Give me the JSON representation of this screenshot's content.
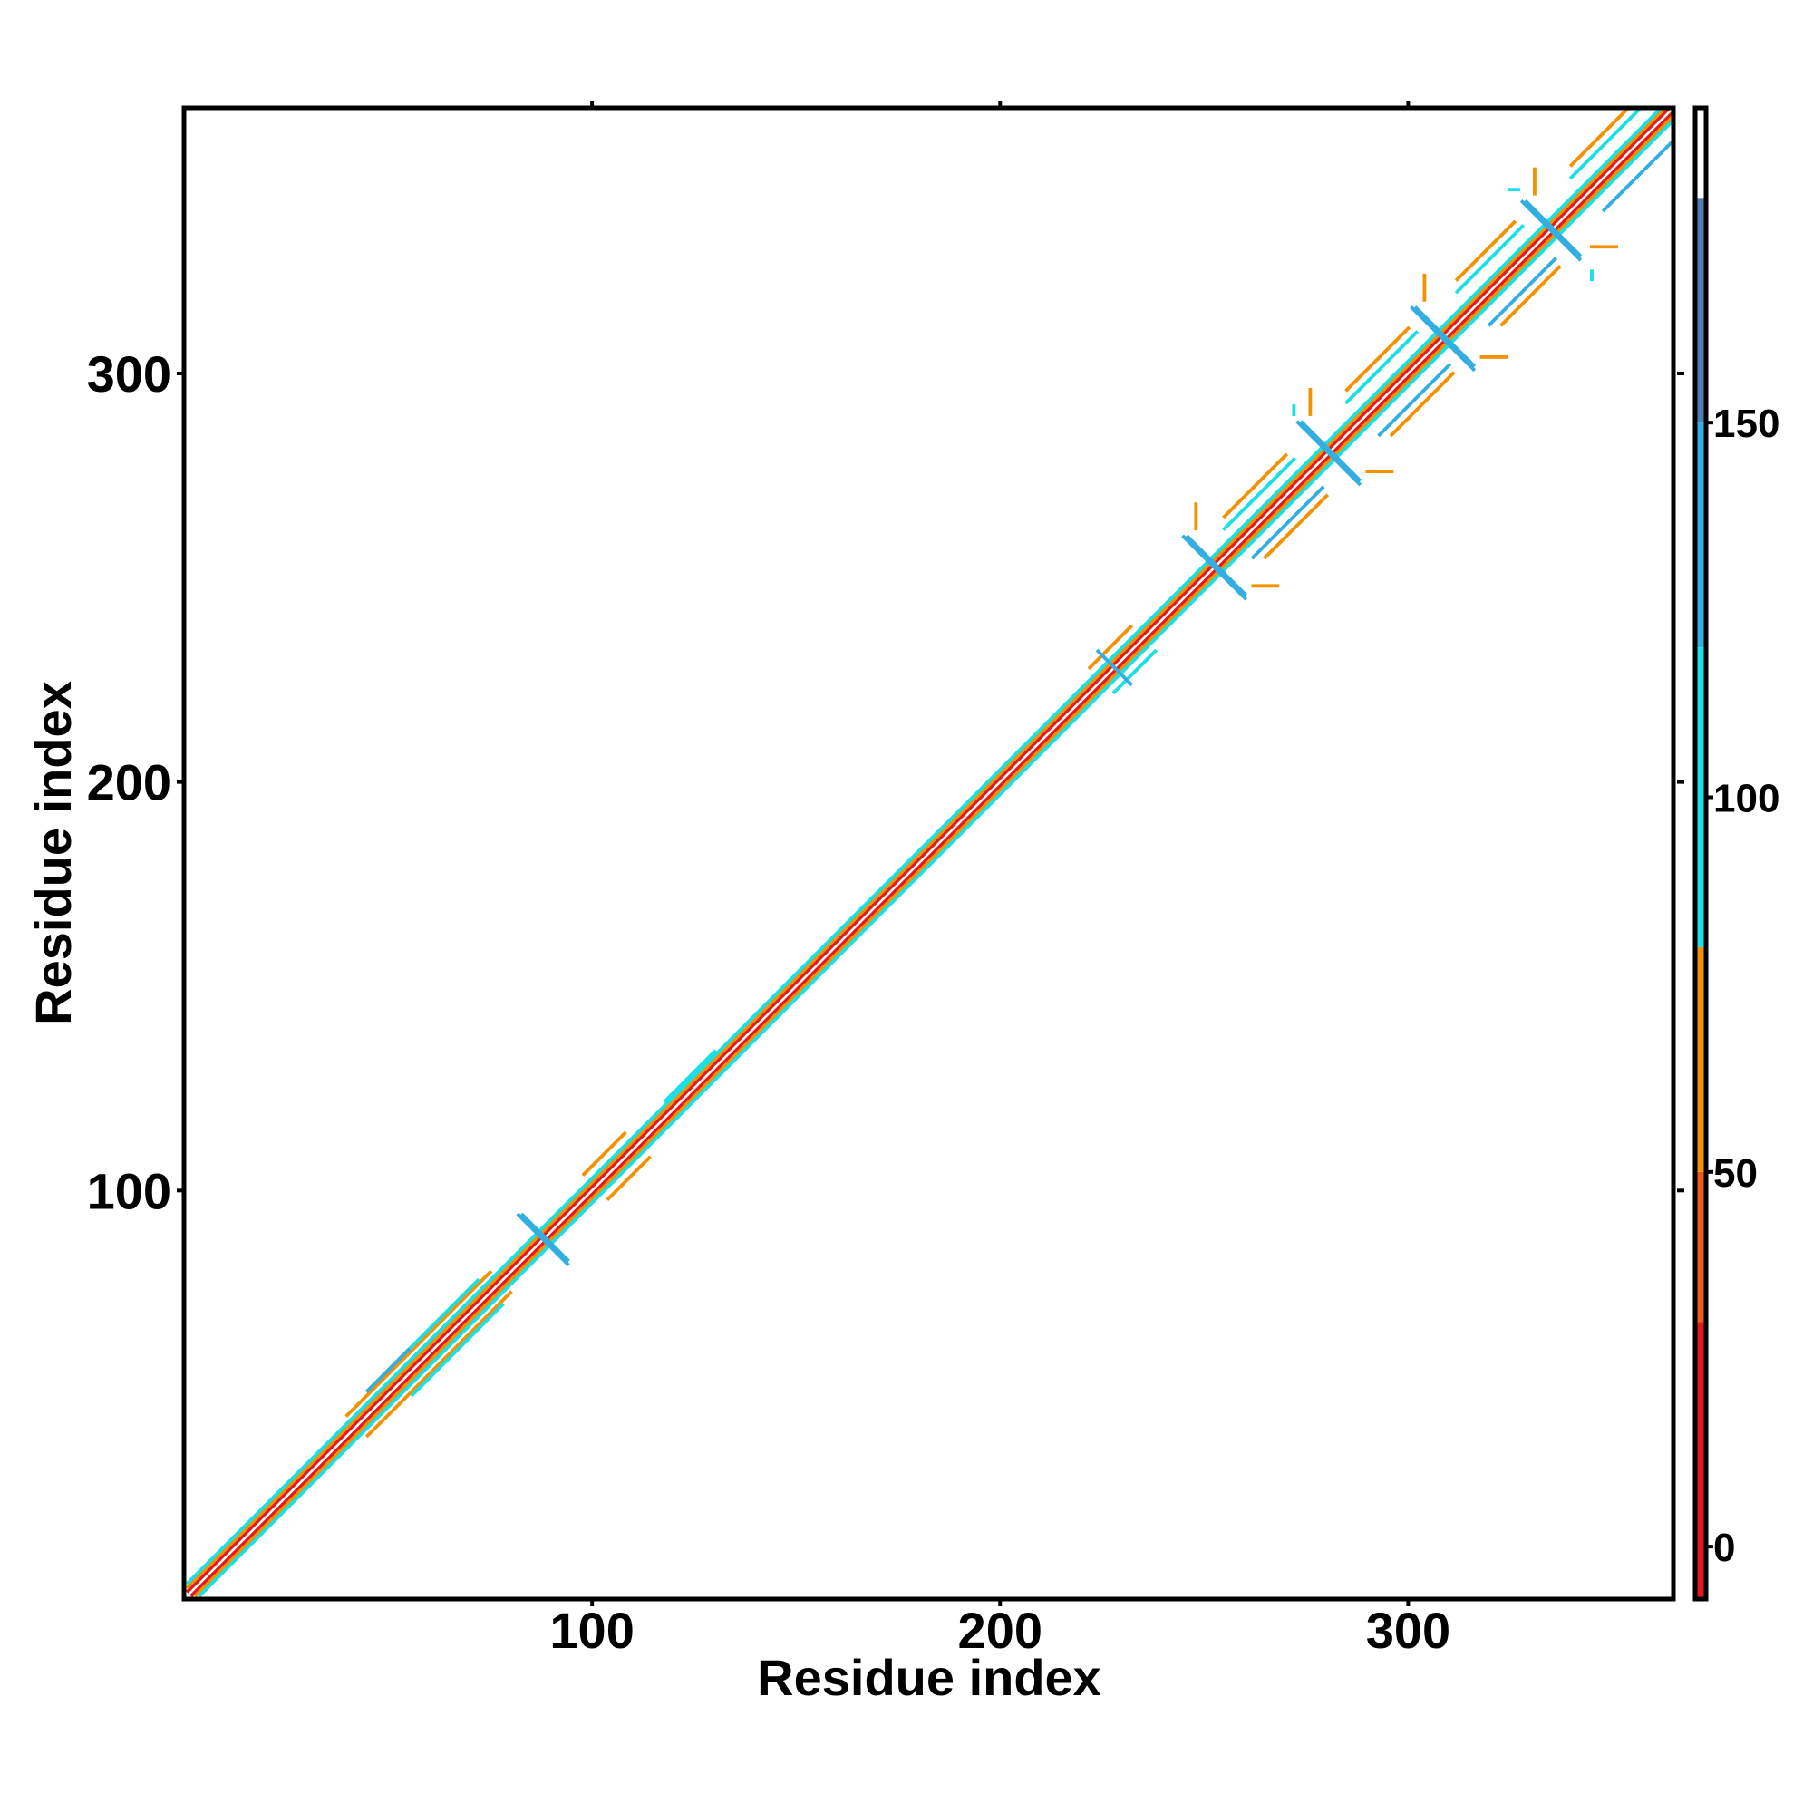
{
  "chart_data": {
    "type": "contact-map",
    "xlabel": "Residue index",
    "ylabel": "Residue index",
    "xlim": [
      0,
      365
    ],
    "ylim": [
      0,
      365
    ],
    "xticks": [
      100,
      200,
      300
    ],
    "yticks": [
      100,
      200,
      300
    ],
    "segments": {
      "x0": [
        1,
        2,
        1,
        3,
        1,
        4,
        40,
        45,
        50,
        56,
        45,
        82,
        83,
        98,
        104,
        118,
        222,
        228,
        224,
        245,
        246,
        248,
        262,
        255,
        262,
        255,
        265,
        273,
        274,
        276,
        290,
        272,
        285,
        293,
        285,
        296,
        301,
        302,
        304,
        318,
        312,
        320,
        312,
        323,
        328,
        329,
        331,
        345,
        325,
        345,
        340,
        348,
        340
      ],
      "y0": [
        2,
        1,
        3,
        1,
        4,
        1,
        45,
        40,
        56,
        50,
        51,
        94,
        94,
        104,
        98,
        122,
        228,
        222,
        232,
        260,
        260,
        262,
        248,
        262,
        255,
        265,
        255,
        288,
        288,
        290,
        276,
        290,
        293,
        285,
        296,
        285,
        316,
        316,
        318,
        304,
        320,
        312,
        323,
        312,
        342,
        342,
        344,
        331,
        345,
        323,
        348,
        340,
        351
      ],
      "x1": [
        364,
        365,
        363,
        365,
        362,
        365,
        75,
        80,
        72,
        78,
        55,
        94,
        94,
        108,
        114,
        130,
        232,
        238,
        232,
        260,
        260,
        248,
        268,
        272,
        279,
        270,
        280,
        288,
        288,
        276,
        296,
        272,
        302,
        310,
        300,
        311,
        316,
        316,
        304,
        324,
        328,
        336,
        326,
        337,
        342,
        342,
        331,
        351,
        327,
        345,
        357,
        365,
        354
      ],
      "y1": [
        365,
        364,
        365,
        363,
        365,
        362,
        80,
        75,
        78,
        72,
        61,
        82,
        83,
        114,
        108,
        134,
        238,
        232,
        224,
        245,
        246,
        268,
        248,
        279,
        272,
        280,
        270,
        273,
        274,
        296,
        276,
        292,
        310,
        302,
        311,
        300,
        301,
        302,
        324,
        304,
        336,
        328,
        337,
        326,
        328,
        329,
        350,
        331,
        345,
        325,
        365,
        357,
        365
      ],
      "values": [
        10,
        10,
        60,
        60,
        100,
        100,
        60,
        60,
        100,
        100,
        130,
        140,
        140,
        60,
        60,
        100,
        60,
        100,
        140,
        140,
        140,
        60,
        60,
        100,
        130,
        60,
        60,
        140,
        140,
        60,
        60,
        100,
        100,
        130,
        60,
        60,
        140,
        140,
        60,
        60,
        100,
        130,
        60,
        60,
        140,
        140,
        60,
        60,
        100,
        100,
        100,
        130,
        60
      ]
    },
    "colorbar": {
      "bounds": [
        -7,
        30,
        50,
        80,
        120,
        150,
        180,
        192
      ],
      "colors": [
        "#e31a1c",
        "#ee5a1a",
        "#f39200",
        "#18e0e6",
        "#33aee0",
        "#4a7fb5",
        "#ffffff"
      ],
      "ticks": [
        0,
        50,
        100,
        150
      ]
    }
  }
}
